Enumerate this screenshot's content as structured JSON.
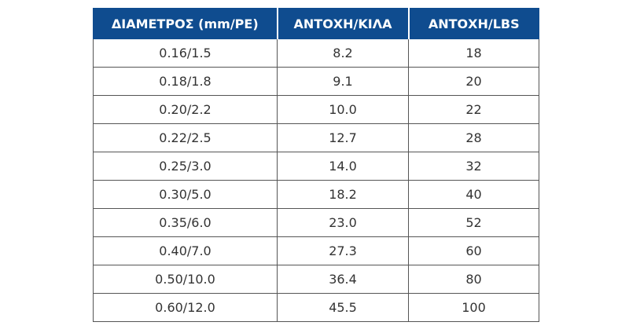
{
  "table": {
    "header": [
      "ΔΙΑΜΕΤΡΟΣ (mm/PE)",
      "ΑΝΤΟΧΗ/ΚΙΛΑ",
      "ΑΝΤΟΧΗ/LBS"
    ],
    "rows": [
      [
        "0.16/1.5",
        "8.2",
        "18"
      ],
      [
        "0.18/1.8",
        "9.1",
        "20"
      ],
      [
        "0.20/2.2",
        "10.0",
        "22"
      ],
      [
        "0.22/2.5",
        "12.7",
        "28"
      ],
      [
        "0.25/3.0",
        "14.0",
        "32"
      ],
      [
        "0.30/5.0",
        "18.2",
        "40"
      ],
      [
        "0.35/6.0",
        "23.0",
        "52"
      ],
      [
        "0.40/7.0",
        "27.3",
        "60"
      ],
      [
        "0.50/10.0",
        "36.4",
        "80"
      ],
      [
        "0.60/12.0",
        "45.5",
        "100"
      ]
    ]
  }
}
